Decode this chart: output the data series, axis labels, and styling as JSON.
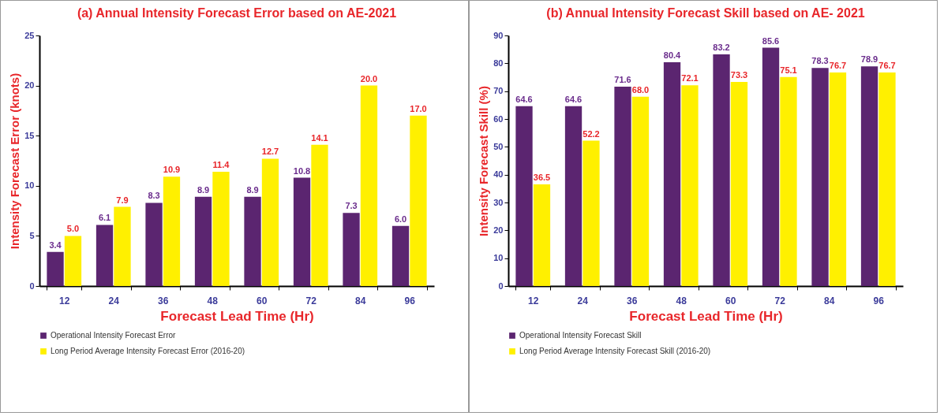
{
  "chart_data": [
    {
      "type": "bar",
      "title": "(a) Annual Intensity Forecast  Error based on AE-2021",
      "xlabel": "Forecast Lead Time (Hr)",
      "ylabel": "Intensity Forecast Error (knots)",
      "categories": [
        "12",
        "24",
        "36",
        "48",
        "60",
        "72",
        "84",
        "96"
      ],
      "ylim": [
        0,
        25
      ],
      "yticks": [
        0,
        5,
        10,
        15,
        20,
        25
      ],
      "legend": "bottom",
      "series": [
        {
          "name": "Operational Intensity Forecast Error",
          "color": "#5b2570",
          "values": [
            3.4,
            6.1,
            8.3,
            8.9,
            8.9,
            10.8,
            7.3,
            6.0
          ],
          "value_labels": [
            "3.4",
            "6.1",
            "8.3",
            "8.9",
            "8.9",
            "10.8",
            "7.3",
            "6.0"
          ]
        },
        {
          "name": "Long Period Average Intensity Forecast Error (2016-20)",
          "color": "#fff000",
          "values": [
            5.0,
            7.9,
            10.9,
            11.4,
            12.7,
            14.1,
            20.0,
            17.0
          ],
          "value_labels": [
            "5.0",
            "7.9",
            "10.9",
            "11.4",
            "12.7",
            "14.1",
            "20.0",
            "17.0"
          ]
        }
      ]
    },
    {
      "type": "bar",
      "title": "(b) Annual  Intensity Forecast Skill based on  AE- 2021",
      "xlabel": "Forecast Lead Time (Hr)",
      "ylabel": "Intensity  Forecast Skill (%)",
      "categories": [
        "12",
        "24",
        "36",
        "48",
        "60",
        "72",
        "84",
        "96"
      ],
      "ylim": [
        0,
        90
      ],
      "yticks": [
        0,
        10,
        20,
        30,
        40,
        50,
        60,
        70,
        80,
        90
      ],
      "legend": "bottom",
      "series": [
        {
          "name": "Operational Intensity Forecast Skill",
          "color": "#5b2570",
          "values": [
            64.6,
            64.6,
            71.6,
            80.4,
            83.2,
            85.6,
            78.3,
            78.9
          ],
          "value_labels": [
            "64.6",
            "64.6",
            "71.6",
            "80.4",
            "83.2",
            "85.6",
            "78.3",
            "78.9"
          ]
        },
        {
          "name": "Long Period Average Intensity Forecast Skill (2016-20)",
          "color": "#fff000",
          "values": [
            36.5,
            52.2,
            68.0,
            72.1,
            73.3,
            75.1,
            76.7,
            76.7
          ],
          "value_labels": [
            "36.5",
            "52.2",
            "68.0",
            "72.1",
            "73.3",
            "75.1",
            "76.7",
            "76.7"
          ]
        }
      ]
    }
  ]
}
